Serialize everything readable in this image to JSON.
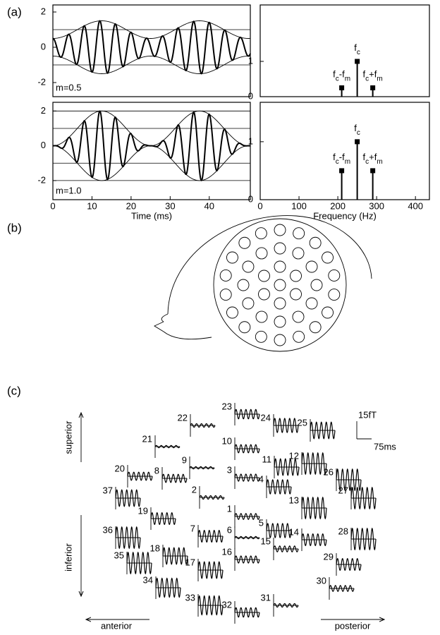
{
  "panel_labels": [
    "(a)",
    "(b)",
    "(c)"
  ],
  "chart_data": [
    {
      "type": "am_waveform",
      "xlim": [
        0,
        50.5
      ],
      "xticks": [
        0,
        10,
        20,
        30,
        40
      ],
      "ylim": [
        -2.8,
        2.4
      ],
      "yticks": [
        -2,
        0,
        2
      ],
      "reference_lines": [
        1,
        -1
      ],
      "annotation": "m=0.5",
      "color": "#000000"
    },
    {
      "type": "am_waveform",
      "xlim": [
        0,
        50.5
      ],
      "xticks": [
        0,
        10,
        20,
        30,
        40
      ],
      "ylim": [
        -3.1,
        2.5
      ],
      "yticks": [
        -2,
        0,
        2
      ],
      "reference_lines": [
        2,
        1,
        -1,
        -2
      ],
      "annotation": "m=1.0",
      "xlabel": "Time (ms)",
      "color": "#000000"
    },
    {
      "type": "stem",
      "x": [
        210,
        250,
        290
      ],
      "values": [
        0.25,
        1,
        0.25
      ],
      "labels": [
        "fc-fm",
        "fc",
        "fc+fm"
      ],
      "xlim": [
        0,
        436
      ],
      "xticks": [
        0,
        100,
        200,
        300,
        400
      ],
      "ylim": [
        0,
        2.6
      ],
      "yticks": [
        0,
        1
      ],
      "color": "#000000"
    },
    {
      "type": "stem",
      "x": [
        210,
        250,
        290
      ],
      "values": [
        0.5,
        1,
        0.5
      ],
      "labels": [
        "fc-fm",
        "fc",
        "fc+fm"
      ],
      "xlim": [
        0,
        436
      ],
      "xticks": [
        0,
        100,
        200,
        300,
        400
      ],
      "ylim": [
        0,
        1.68
      ],
      "yticks": [
        0,
        1
      ],
      "xlabel": "Frequency (Hz)",
      "color": "#000000"
    }
  ],
  "sensor_map": {
    "scale_bar": {
      "amplitude": 15,
      "amplitude_label": "15fT",
      "duration": 75,
      "duration_label": "75ms"
    },
    "directions": {
      "up": "superior",
      "down": "inferior",
      "left": "anterior",
      "right": "posterior"
    },
    "sensors": [
      {
        "label": "1",
        "amplitude": 2.5
      },
      {
        "label": "2",
        "amplitude": 1.5
      },
      {
        "label": "3",
        "amplitude": 3
      },
      {
        "label": "4",
        "amplitude": 6
      },
      {
        "label": "5",
        "amplitude": 6
      },
      {
        "label": "6",
        "amplitude": 1
      },
      {
        "label": "7",
        "amplitude": 5
      },
      {
        "label": "8",
        "amplitude": 3.5
      },
      {
        "label": "9",
        "amplitude": 1
      },
      {
        "label": "10",
        "amplitude": 3.5
      },
      {
        "label": "11",
        "amplitude": 7
      },
      {
        "label": "12",
        "amplitude": 9
      },
      {
        "label": "13",
        "amplitude": 9
      },
      {
        "label": "14",
        "amplitude": 5
      },
      {
        "label": "15",
        "amplitude": 2.5
      },
      {
        "label": "16",
        "amplitude": 3
      },
      {
        "label": "17",
        "amplitude": 7
      },
      {
        "label": "18",
        "amplitude": 7
      },
      {
        "label": "19",
        "amplitude": 5
      },
      {
        "label": "20",
        "amplitude": 3.5
      },
      {
        "label": "21",
        "amplitude": 1
      },
      {
        "label": "22",
        "amplitude": 1.5
      },
      {
        "label": "23",
        "amplitude": 4
      },
      {
        "label": "24",
        "amplitude": 6
      },
      {
        "label": "25",
        "amplitude": 7
      },
      {
        "label": "26",
        "amplitude": 9
      },
      {
        "label": "27",
        "amplitude": 9
      },
      {
        "label": "28",
        "amplitude": 9
      },
      {
        "label": "29",
        "amplitude": 5
      },
      {
        "label": "30",
        "amplitude": 2.5
      },
      {
        "label": "31",
        "amplitude": 1.5
      },
      {
        "label": "32",
        "amplitude": 4
      },
      {
        "label": "33",
        "amplitude": 8
      },
      {
        "label": "34",
        "amplitude": 8
      },
      {
        "label": "35",
        "amplitude": 9
      },
      {
        "label": "36",
        "amplitude": 9
      },
      {
        "label": "37",
        "amplitude": 7
      }
    ]
  }
}
